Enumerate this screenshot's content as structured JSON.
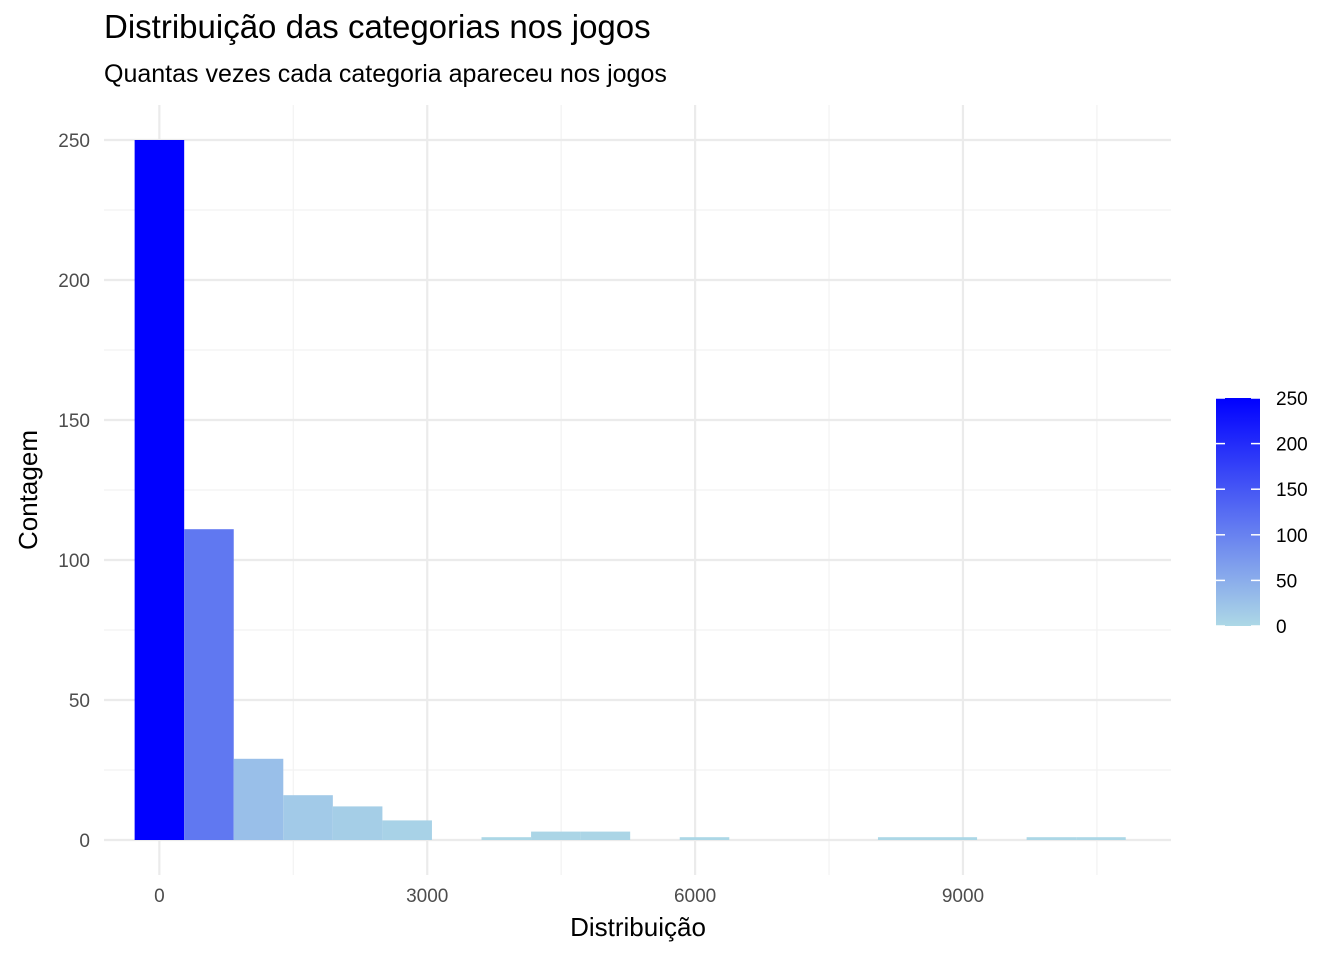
{
  "chart_data": {
    "type": "bar",
    "title": "Distribuição das categorias nos jogos",
    "subtitle": "Quantas vezes cada categoria apareceu nos jogos",
    "xlabel": "Distribuição",
    "ylabel": "Contagem",
    "bin_width": 555,
    "bins": [
      {
        "x_start": -277,
        "x_end": 278,
        "count": 250
      },
      {
        "x_start": 278,
        "x_end": 833,
        "count": 111
      },
      {
        "x_start": 833,
        "x_end": 1388,
        "count": 29
      },
      {
        "x_start": 1388,
        "x_end": 1943,
        "count": 16
      },
      {
        "x_start": 1943,
        "x_end": 2498,
        "count": 12
      },
      {
        "x_start": 2498,
        "x_end": 3053,
        "count": 7
      },
      {
        "x_start": 3608,
        "x_end": 4163,
        "count": 1
      },
      {
        "x_start": 4163,
        "x_end": 4718,
        "count": 3
      },
      {
        "x_start": 4718,
        "x_end": 5273,
        "count": 3
      },
      {
        "x_start": 5828,
        "x_end": 6383,
        "count": 1
      },
      {
        "x_start": 8048,
        "x_end": 8603,
        "count": 1
      },
      {
        "x_start": 8603,
        "x_end": 9158,
        "count": 1
      },
      {
        "x_start": 9713,
        "x_end": 10268,
        "count": 1
      },
      {
        "x_start": 10268,
        "x_end": 10823,
        "count": 1
      }
    ],
    "xlim": [
      -620,
      11330
    ],
    "ylim": [
      -12.5,
      262.5
    ],
    "x_ticks": [
      0,
      3000,
      6000,
      9000
    ],
    "x_tick_labels": [
      "0",
      "3000",
      "6000",
      "9000"
    ],
    "y_ticks": [
      0,
      50,
      100,
      150,
      200,
      250
    ],
    "y_tick_labels": [
      "0",
      "50",
      "100",
      "150",
      "200",
      "250"
    ],
    "grid": true,
    "legend": {
      "placement": "right",
      "type": "colorbar",
      "min": 0,
      "max": 250,
      "ticks": [
        0,
        50,
        100,
        150,
        200,
        250
      ],
      "tick_labels": [
        "0",
        "50",
        "100",
        "150",
        "200",
        "250"
      ],
      "color_low": "#add8e6",
      "color_high": "#0000ff"
    }
  }
}
